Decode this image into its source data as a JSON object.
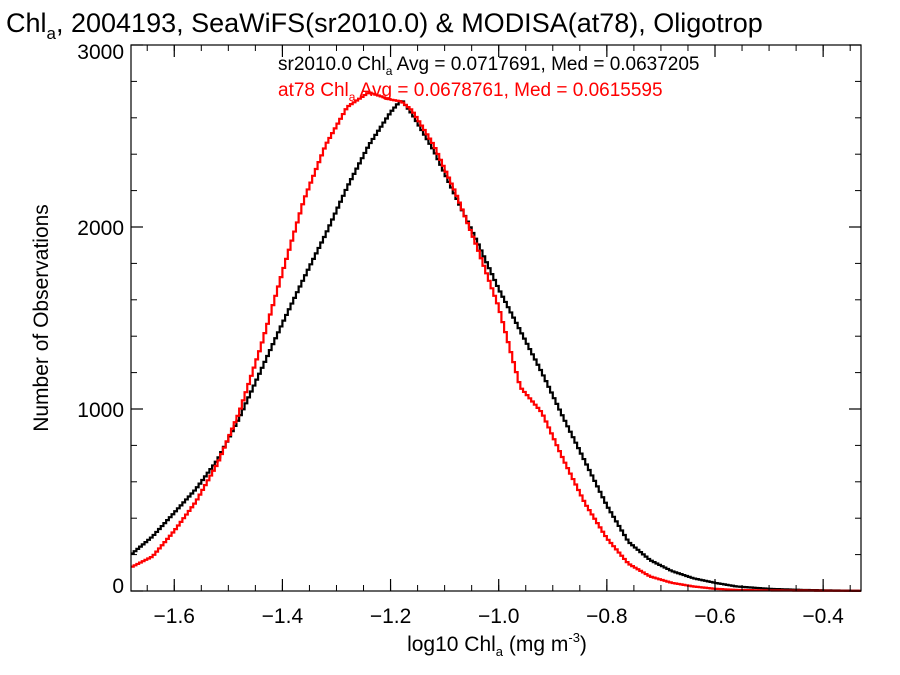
{
  "chart_data": {
    "type": "line",
    "step": true,
    "title": "Chl",
    "title_sub": "a",
    "title_rest": ", 2004193, SeaWiFS(sr2010.0) & MODISA(at78), Oligotrop",
    "xlabel": "log10 Chl",
    "xlabel_sub": "a",
    "xlabel_unit": " (mg m",
    "xlabel_sup": "-3",
    "xlabel_close": ")",
    "ylabel": "Number of Observations",
    "xlim": [
      -1.68,
      -0.33
    ],
    "ylim": [
      0,
      3000
    ],
    "x_ticks": [
      -1.6,
      -1.4,
      -1.2,
      -1.0,
      -0.8,
      -0.6,
      -0.4
    ],
    "x_tick_labels": [
      "−1.6",
      "−1.4",
      "−1.2",
      "−1.0",
      "−0.8",
      "−0.6",
      "−0.4"
    ],
    "y_ticks": [
      0,
      1000,
      2000,
      3000
    ],
    "y_tick_labels": [
      "0",
      "1000",
      "2000",
      "3000"
    ],
    "grid": false,
    "legend_position": "top-right",
    "series": [
      {
        "name": "sr2010.0",
        "color": "#000000",
        "legend": {
          "pre": "sr2010.0 Chl",
          "sub": "a",
          "post": " Avg = 0.0717691, Med = 0.0637205"
        },
        "x": [
          -1.68,
          -1.64,
          -1.6,
          -1.56,
          -1.52,
          -1.48,
          -1.44,
          -1.4,
          -1.36,
          -1.32,
          -1.28,
          -1.24,
          -1.2,
          -1.18,
          -1.16,
          -1.12,
          -1.08,
          -1.04,
          -1.0,
          -0.96,
          -0.92,
          -0.88,
          -0.84,
          -0.8,
          -0.76,
          -0.72,
          -0.68,
          -0.64,
          -0.6,
          -0.56,
          -0.5,
          -0.44,
          -0.38,
          -0.33
        ],
        "values": [
          200,
          300,
          430,
          560,
          720,
          950,
          1210,
          1470,
          1720,
          1960,
          2220,
          2450,
          2630,
          2700,
          2620,
          2420,
          2170,
          1920,
          1660,
          1430,
          1200,
          950,
          710,
          470,
          270,
          170,
          110,
          70,
          45,
          25,
          12,
          6,
          3,
          1
        ]
      },
      {
        "name": "at78",
        "color": "#ff0000",
        "legend": {
          "pre": "at78 Chl",
          "sub": "a",
          "post": " Avg = 0.0678761, Med = 0.0615595"
        },
        "x": [
          -1.68,
          -1.64,
          -1.6,
          -1.56,
          -1.52,
          -1.48,
          -1.44,
          -1.4,
          -1.36,
          -1.32,
          -1.28,
          -1.24,
          -1.2,
          -1.18,
          -1.16,
          -1.12,
          -1.08,
          -1.04,
          -1.0,
          -0.96,
          -0.92,
          -0.88,
          -0.84,
          -0.8,
          -0.76,
          -0.72,
          -0.68,
          -0.64,
          -0.6,
          -0.56,
          -0.5,
          -0.44,
          -0.38,
          -0.33
        ],
        "values": [
          130,
          190,
          330,
          490,
          700,
          980,
          1340,
          1750,
          2150,
          2450,
          2660,
          2740,
          2700,
          2690,
          2640,
          2450,
          2190,
          1890,
          1560,
          1120,
          980,
          720,
          480,
          290,
          150,
          80,
          45,
          25,
          12,
          6,
          3,
          2,
          1,
          1
        ]
      }
    ]
  }
}
